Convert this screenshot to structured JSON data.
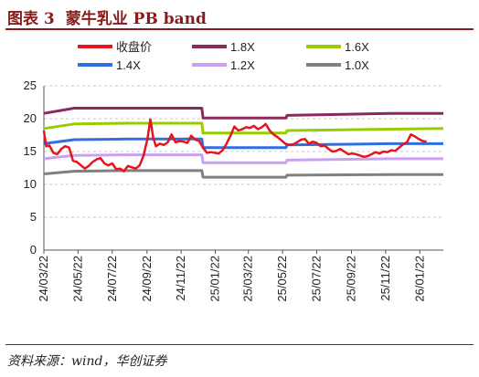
{
  "header": {
    "figure_label": "图表 3",
    "title": "蒙牛乳业 PB band"
  },
  "source": "资料来源：wind，华创证券",
  "colors": {
    "title": "#8b1a1a",
    "price": "#e8141c",
    "band_1_8": "#8b2a5a",
    "band_1_6": "#99cc00",
    "band_1_4": "#2f6fe0",
    "band_1_2": "#c9a0f0",
    "band_1_0": "#808080"
  },
  "chart_data": {
    "type": "line",
    "ylim": [
      0,
      25
    ],
    "yticks": [
      0,
      5,
      10,
      15,
      20,
      25
    ],
    "xlim": [
      "2024-03-22",
      "2026-03-05"
    ],
    "xticks": [
      "24/03/22",
      "24/05/22",
      "24/07/22",
      "24/09/22",
      "24/11/22",
      "25/01/22",
      "25/03/22",
      "25/05/22",
      "25/07/22",
      "25/09/22",
      "25/11/22",
      "26/01/22"
    ],
    "xtick_dates": [
      "2024-03-22",
      "2024-05-22",
      "2024-07-22",
      "2024-09-22",
      "2024-11-22",
      "2025-01-22",
      "2025-03-22",
      "2025-05-22",
      "2025-07-22",
      "2025-09-22",
      "2025-11-22",
      "2026-01-22"
    ],
    "legend_position": "top",
    "series": [
      {
        "name": "收盘价",
        "color": "#e8141c",
        "points": [
          [
            "2024-03-22",
            18.2
          ],
          [
            "2024-03-26",
            15.8
          ],
          [
            "2024-04-01",
            15.9
          ],
          [
            "2024-04-08",
            14.8
          ],
          [
            "2024-04-15",
            14.6
          ],
          [
            "2024-04-22",
            15.4
          ],
          [
            "2024-04-29",
            15.8
          ],
          [
            "2024-05-06",
            15.6
          ],
          [
            "2024-05-13",
            13.6
          ],
          [
            "2024-05-20",
            13.4
          ],
          [
            "2024-05-27",
            12.9
          ],
          [
            "2024-06-03",
            12.4
          ],
          [
            "2024-06-10",
            12.8
          ],
          [
            "2024-06-17",
            13.4
          ],
          [
            "2024-06-24",
            13.8
          ],
          [
            "2024-07-01",
            14.0
          ],
          [
            "2024-07-08",
            13.2
          ],
          [
            "2024-07-15",
            12.9
          ],
          [
            "2024-07-22",
            13.2
          ],
          [
            "2024-07-29",
            12.3
          ],
          [
            "2024-08-05",
            12.4
          ],
          [
            "2024-08-12",
            12.0
          ],
          [
            "2024-08-19",
            12.8
          ],
          [
            "2024-08-26",
            12.6
          ],
          [
            "2024-09-02",
            12.4
          ],
          [
            "2024-09-09",
            12.9
          ],
          [
            "2024-09-16",
            14.4
          ],
          [
            "2024-09-23",
            17.0
          ],
          [
            "2024-09-28",
            19.9
          ],
          [
            "2024-10-03",
            17.2
          ],
          [
            "2024-10-08",
            15.8
          ],
          [
            "2024-10-15",
            16.2
          ],
          [
            "2024-10-22",
            16.0
          ],
          [
            "2024-10-29",
            16.4
          ],
          [
            "2024-11-05",
            17.6
          ],
          [
            "2024-11-12",
            16.4
          ],
          [
            "2024-11-19",
            16.6
          ],
          [
            "2024-11-26",
            16.5
          ],
          [
            "2024-12-03",
            16.3
          ],
          [
            "2024-12-10",
            17.4
          ],
          [
            "2024-12-17",
            16.8
          ],
          [
            "2024-12-24",
            16.6
          ],
          [
            "2024-12-31",
            15.6
          ],
          [
            "2025-01-07",
            14.8
          ],
          [
            "2025-01-14",
            14.9
          ],
          [
            "2025-01-21",
            14.8
          ],
          [
            "2025-01-28",
            14.7
          ],
          [
            "2025-02-04",
            15.2
          ],
          [
            "2025-02-11",
            16.2
          ],
          [
            "2025-02-18",
            17.4
          ],
          [
            "2025-02-25",
            18.8
          ],
          [
            "2025-03-04",
            18.2
          ],
          [
            "2025-03-11",
            18.4
          ],
          [
            "2025-03-18",
            18.7
          ],
          [
            "2025-03-25",
            18.6
          ],
          [
            "2025-04-01",
            18.9
          ],
          [
            "2025-04-08",
            18.4
          ],
          [
            "2025-04-15",
            18.7
          ],
          [
            "2025-04-22",
            19.2
          ],
          [
            "2025-04-29",
            18.2
          ],
          [
            "2025-05-06",
            17.6
          ],
          [
            "2025-05-13",
            17.2
          ],
          [
            "2025-05-20",
            16.7
          ],
          [
            "2025-05-27",
            16.2
          ],
          [
            "2025-06-03",
            16.0
          ],
          [
            "2025-06-10",
            16.1
          ],
          [
            "2025-06-17",
            16.4
          ],
          [
            "2025-06-24",
            16.8
          ],
          [
            "2025-07-01",
            16.9
          ],
          [
            "2025-07-08",
            16.2
          ],
          [
            "2025-07-15",
            16.5
          ],
          [
            "2025-07-22",
            16.3
          ],
          [
            "2025-07-29",
            15.8
          ],
          [
            "2025-08-05",
            15.9
          ],
          [
            "2025-08-12",
            15.4
          ],
          [
            "2025-08-19",
            15.0
          ],
          [
            "2025-08-26",
            15.1
          ],
          [
            "2025-09-02",
            15.4
          ],
          [
            "2025-09-09",
            15.0
          ],
          [
            "2025-09-16",
            14.6
          ],
          [
            "2025-09-23",
            14.7
          ],
          [
            "2025-09-30",
            14.6
          ],
          [
            "2025-10-07",
            14.4
          ],
          [
            "2025-10-14",
            14.2
          ],
          [
            "2025-10-21",
            14.3
          ],
          [
            "2025-10-28",
            14.6
          ],
          [
            "2025-11-04",
            14.9
          ],
          [
            "2025-11-11",
            14.7
          ],
          [
            "2025-11-18",
            15.0
          ],
          [
            "2025-11-25",
            14.9
          ],
          [
            "2025-12-02",
            15.2
          ],
          [
            "2025-12-09",
            15.1
          ],
          [
            "2025-12-16",
            15.6
          ],
          [
            "2025-12-23",
            16.1
          ],
          [
            "2025-12-30",
            16.4
          ],
          [
            "2026-01-06",
            17.6
          ],
          [
            "2026-01-13",
            17.3
          ],
          [
            "2026-01-20",
            16.9
          ],
          [
            "2026-01-27",
            16.6
          ],
          [
            "2026-02-03",
            16.5
          ]
        ]
      },
      {
        "name": "1.8X",
        "color": "#8b2a5a",
        "points": [
          [
            "2024-03-22",
            20.8
          ],
          [
            "2024-05-15",
            21.6
          ],
          [
            "2024-08-20",
            21.6
          ],
          [
            "2024-12-29",
            21.6
          ],
          [
            "2024-12-31",
            20.1
          ],
          [
            "2025-05-28",
            20.1
          ],
          [
            "2025-05-30",
            20.5
          ],
          [
            "2025-11-30",
            20.8
          ],
          [
            "2026-03-05",
            20.8
          ]
        ]
      },
      {
        "name": "1.6X",
        "color": "#99cc00",
        "points": [
          [
            "2024-03-22",
            18.5
          ],
          [
            "2024-05-15",
            19.2
          ],
          [
            "2024-08-20",
            19.3
          ],
          [
            "2024-12-29",
            19.3
          ],
          [
            "2024-12-31",
            17.8
          ],
          [
            "2025-05-28",
            17.8
          ],
          [
            "2025-05-30",
            18.2
          ],
          [
            "2025-11-30",
            18.4
          ],
          [
            "2026-03-05",
            18.5
          ]
        ]
      },
      {
        "name": "1.4X",
        "color": "#2f6fe0",
        "points": [
          [
            "2024-03-22",
            16.2
          ],
          [
            "2024-05-15",
            16.8
          ],
          [
            "2024-08-20",
            16.9
          ],
          [
            "2024-12-29",
            16.9
          ],
          [
            "2024-12-31",
            15.6
          ],
          [
            "2025-05-28",
            15.6
          ],
          [
            "2025-05-30",
            16.0
          ],
          [
            "2025-11-30",
            16.2
          ],
          [
            "2026-03-05",
            16.2
          ]
        ]
      },
      {
        "name": "1.2X",
        "color": "#c9a0f0",
        "points": [
          [
            "2024-03-22",
            13.9
          ],
          [
            "2024-05-15",
            14.4
          ],
          [
            "2024-08-20",
            14.5
          ],
          [
            "2024-12-29",
            14.5
          ],
          [
            "2024-12-31",
            13.3
          ],
          [
            "2025-05-28",
            13.3
          ],
          [
            "2025-05-30",
            13.7
          ],
          [
            "2025-11-30",
            13.9
          ],
          [
            "2026-03-05",
            13.9
          ]
        ]
      },
      {
        "name": "1.0X",
        "color": "#808080",
        "points": [
          [
            "2024-03-22",
            11.6
          ],
          [
            "2024-05-15",
            12.0
          ],
          [
            "2024-08-20",
            12.1
          ],
          [
            "2024-12-29",
            12.1
          ],
          [
            "2024-12-31",
            11.1
          ],
          [
            "2025-05-28",
            11.1
          ],
          [
            "2025-05-30",
            11.4
          ],
          [
            "2025-11-30",
            11.5
          ],
          [
            "2026-03-05",
            11.5
          ]
        ]
      }
    ]
  }
}
